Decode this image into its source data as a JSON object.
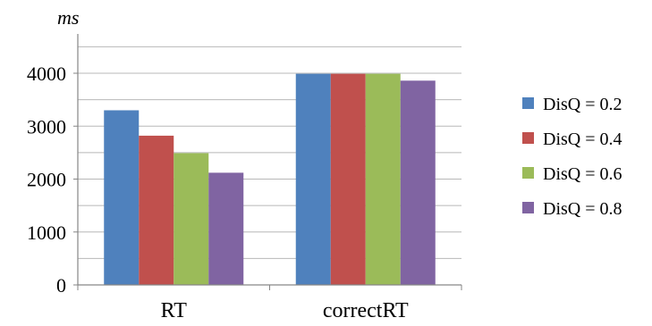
{
  "chart_data": {
    "type": "bar",
    "ylabel": "ms",
    "xlabel": "",
    "categories": [
      "RT",
      "correctRT"
    ],
    "series": [
      {
        "name": "DisQ = 0.2",
        "color": "#4F81BD",
        "values": [
          3300,
          3990
        ]
      },
      {
        "name": "DisQ = 0.4",
        "color": "#C0504D",
        "values": [
          2820,
          3990
        ]
      },
      {
        "name": "DisQ = 0.6",
        "color": "#9BBB59",
        "values": [
          2490,
          3990
        ]
      },
      {
        "name": "DisQ = 0.8",
        "color": "#8064A2",
        "values": [
          2120,
          3860
        ]
      }
    ],
    "ylim": [
      0,
      4000
    ],
    "yticks": [
      "0",
      "1000",
      "2000",
      "3000",
      "4000"
    ],
    "grid": true,
    "legend_position": "right"
  }
}
